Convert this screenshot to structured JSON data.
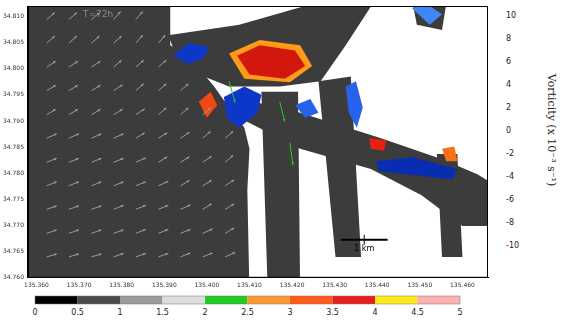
{
  "chart_data": {
    "type": "map",
    "annotation": "T=72h",
    "xlim": [
      135.358,
      135.466
    ],
    "xticks": [
      {
        "value": 135.36,
        "label": "135.360"
      },
      {
        "value": 135.37,
        "label": "135.370"
      },
      {
        "value": 135.38,
        "label": "135.380"
      },
      {
        "value": 135.39,
        "label": "135.390"
      },
      {
        "value": 135.4,
        "label": "135.400"
      },
      {
        "value": 135.41,
        "label": "135.410"
      },
      {
        "value": 135.42,
        "label": "135.420"
      },
      {
        "value": 135.43,
        "label": "135.430"
      },
      {
        "value": 135.44,
        "label": "135.440"
      },
      {
        "value": 135.45,
        "label": "135.450"
      },
      {
        "value": 135.46,
        "label": "135.460"
      }
    ],
    "ylim": [
      34.76,
      34.812
    ],
    "yticks": [
      {
        "value": 34.76,
        "label": "34.760"
      },
      {
        "value": 34.765,
        "label": "34.765"
      },
      {
        "value": 34.77,
        "label": "34.770"
      },
      {
        "value": 34.775,
        "label": "34.775"
      },
      {
        "value": 34.78,
        "label": "34.780"
      },
      {
        "value": 34.785,
        "label": "34.785"
      },
      {
        "value": 34.79,
        "label": "34.790"
      },
      {
        "value": 34.795,
        "label": "34.795"
      },
      {
        "value": 34.8,
        "label": "34.800"
      },
      {
        "value": 34.805,
        "label": "34.805"
      },
      {
        "value": 34.81,
        "label": "34.810"
      }
    ],
    "grid": false,
    "water": [
      [
        [
          135.3552,
          34.8134
        ],
        [
          135.3914,
          34.8134
        ],
        [
          135.3914,
          34.8045
        ],
        [
          135.3957,
          34.8025
        ],
        [
          135.4017,
          34.7966
        ],
        [
          135.4052,
          34.7926
        ],
        [
          135.4088,
          34.7887
        ],
        [
          135.41,
          34.7847
        ],
        [
          135.4095,
          34.7768
        ],
        [
          135.41,
          34.757
        ],
        [
          135.3552,
          34.757
        ]
      ],
      [
        [
          135.3909,
          34.8064
        ],
        [
          135.4076,
          34.8084
        ],
        [
          135.429,
          34.8134
        ],
        [
          135.4397,
          34.8134
        ],
        [
          135.4326,
          34.8045
        ],
        [
          135.4267,
          34.7976
        ],
        [
          135.4171,
          34.7966
        ],
        [
          135.4052,
          34.7966
        ],
        [
          135.3993,
          34.7985
        ],
        [
          135.3933,
          34.8015
        ]
      ],
      [
        [
          135.4128,
          34.7956
        ],
        [
          135.4214,
          34.7956
        ],
        [
          135.4219,
          34.757
        ],
        [
          135.4143,
          34.757
        ]
      ],
      [
        [
          135.4262,
          34.7976
        ],
        [
          135.4338,
          34.7985
        ],
        [
          135.4362,
          34.764
        ],
        [
          135.4302,
          34.764
        ]
      ],
      [
        [
          135.4064,
          34.7946
        ],
        [
          135.4219,
          34.7916
        ],
        [
          135.4409,
          34.7867
        ],
        [
          135.4552,
          34.7827
        ],
        [
          135.4635,
          34.7798
        ],
        [
          135.4695,
          34.7768
        ],
        [
          135.4695,
          34.7699
        ],
        [
          135.46,
          34.7699
        ],
        [
          135.4504,
          34.7758
        ],
        [
          135.4385,
          34.7808
        ],
        [
          135.4219,
          34.7847
        ],
        [
          135.4076,
          34.7906
        ]
      ],
      [
        [
          135.4481,
          34.8134
        ],
        [
          135.4564,
          34.8134
        ],
        [
          135.4552,
          34.8074
        ],
        [
          135.4493,
          34.8084
        ]
      ],
      [
        [
          135.454,
          34.7837
        ],
        [
          135.4588,
          34.7837
        ],
        [
          135.46,
          34.764
        ],
        [
          135.4552,
          34.764
        ]
      ]
    ],
    "vorticity_patches": [
      {
        "value": 3,
        "polygon": [
          [
            135.4052,
            34.8029
          ],
          [
            135.4124,
            34.8055
          ],
          [
            135.4219,
            34.8045
          ],
          [
            135.4247,
            34.8005
          ],
          [
            135.4195,
            34.7974
          ],
          [
            135.4088,
            34.7981
          ]
        ]
      },
      {
        "value": 7,
        "polygon": [
          [
            135.4071,
            34.8025
          ],
          [
            135.4124,
            34.8045
          ],
          [
            135.4207,
            34.8035
          ],
          [
            135.4231,
            34.8005
          ],
          [
            135.4183,
            34.7981
          ],
          [
            135.41,
            34.7989
          ]
        ]
      },
      {
        "value": -7,
        "polygon": [
          [
            135.3921,
            34.8025
          ],
          [
            135.3957,
            34.8049
          ],
          [
            135.4005,
            34.8041
          ],
          [
            135.3993,
            34.8021
          ],
          [
            135.3957,
            34.8009
          ]
        ]
      },
      {
        "value": -7,
        "polygon": [
          [
            135.404,
            34.7946
          ],
          [
            135.4088,
            34.7966
          ],
          [
            135.4128,
            34.795
          ],
          [
            135.4119,
            34.7916
          ],
          [
            135.4076,
            34.7887
          ],
          [
            135.4047,
            34.7906
          ]
        ]
      },
      {
        "value": 5,
        "polygon": [
          [
            135.3981,
            34.7937
          ],
          [
            135.4009,
            34.7956
          ],
          [
            135.4024,
            34.793
          ],
          [
            135.4,
            34.7906
          ]
        ]
      },
      {
        "value": -5,
        "polygon": [
          [
            135.4326,
            34.7966
          ],
          [
            135.435,
            34.7976
          ],
          [
            135.4366,
            34.7926
          ],
          [
            135.4352,
            34.7887
          ],
          [
            135.4333,
            34.7916
          ]
        ]
      },
      {
        "value": -8,
        "polygon": [
          [
            135.4397,
            34.7823
          ],
          [
            135.4481,
            34.7831
          ],
          [
            135.4588,
            34.7808
          ],
          [
            135.4576,
            34.7788
          ],
          [
            135.4469,
            34.7798
          ],
          [
            135.4404,
            34.7804
          ]
        ]
      },
      {
        "value": 6,
        "polygon": [
          [
            135.4381,
            34.7867
          ],
          [
            135.4421,
            34.7863
          ],
          [
            135.4416,
            34.7843
          ],
          [
            135.4385,
            34.7847
          ]
        ]
      },
      {
        "value": -4,
        "polygon": [
          [
            135.4481,
            34.8116
          ],
          [
            135.4516,
            34.8124
          ],
          [
            135.4552,
            34.8104
          ],
          [
            135.4523,
            34.8084
          ]
        ]
      },
      {
        "value": 4,
        "polygon": [
          [
            135.4552,
            34.7847
          ],
          [
            135.4581,
            34.7851
          ],
          [
            135.4588,
            34.7823
          ],
          [
            135.4562,
            34.7823
          ]
        ]
      },
      {
        "value": -5,
        "polygon": [
          [
            135.4207,
            34.793
          ],
          [
            135.4243,
            34.7942
          ],
          [
            135.4262,
            34.7916
          ],
          [
            135.4231,
            34.7906
          ]
        ]
      }
    ],
    "vectors": [
      [
        135.3624,
        34.8094,
        0.8,
        0.7
      ],
      [
        135.3676,
        34.8094,
        0.8,
        0.7
      ],
      [
        135.3729,
        34.8094,
        0.8,
        0.7
      ],
      [
        135.3781,
        34.8094,
        0.7,
        0.8
      ],
      [
        135.3833,
        34.8094,
        0.7,
        0.8
      ],
      [
        135.3624,
        34.8049,
        0.8,
        0.7
      ],
      [
        135.3676,
        34.8049,
        0.8,
        0.7
      ],
      [
        135.3729,
        34.8049,
        0.8,
        0.7
      ],
      [
        135.3781,
        34.8049,
        0.8,
        0.7
      ],
      [
        135.3833,
        34.8049,
        0.7,
        0.8
      ],
      [
        135.3886,
        34.8049,
        0.7,
        0.8
      ],
      [
        135.3624,
        34.8003,
        0.9,
        0.6
      ],
      [
        135.3676,
        34.8003,
        0.9,
        0.6
      ],
      [
        135.3729,
        34.8003,
        0.9,
        0.6
      ],
      [
        135.3781,
        34.8003,
        0.8,
        0.7
      ],
      [
        135.3833,
        34.8003,
        0.8,
        0.7
      ],
      [
        135.3886,
        34.8003,
        0.8,
        0.7
      ],
      [
        135.3624,
        34.7958,
        0.9,
        0.55
      ],
      [
        135.3676,
        34.7958,
        0.9,
        0.55
      ],
      [
        135.3729,
        34.7958,
        0.9,
        0.55
      ],
      [
        135.3781,
        34.7958,
        0.9,
        0.6
      ],
      [
        135.3833,
        34.7958,
        0.8,
        0.7
      ],
      [
        135.3886,
        34.7958,
        0.8,
        0.7
      ],
      [
        135.3938,
        34.7958,
        0.8,
        0.7
      ],
      [
        135.3624,
        34.7912,
        0.9,
        0.55
      ],
      [
        135.3676,
        34.7912,
        0.9,
        0.55
      ],
      [
        135.3729,
        34.7912,
        0.9,
        0.55
      ],
      [
        135.3781,
        34.7912,
        0.9,
        0.55
      ],
      [
        135.3833,
        34.7912,
        0.9,
        0.6
      ],
      [
        135.3886,
        34.7912,
        0.8,
        0.7
      ],
      [
        135.3938,
        34.7912,
        0.8,
        0.7
      ],
      [
        135.399,
        34.7912,
        0.8,
        0.7
      ],
      [
        135.3624,
        34.7867,
        1.0,
        0.45
      ],
      [
        135.3676,
        34.7867,
        1.0,
        0.45
      ],
      [
        135.3729,
        34.7867,
        1.0,
        0.45
      ],
      [
        135.3781,
        34.7867,
        1.0,
        0.45
      ],
      [
        135.3833,
        34.7867,
        0.9,
        0.55
      ],
      [
        135.3886,
        34.7867,
        0.9,
        0.55
      ],
      [
        135.3938,
        34.7867,
        0.9,
        0.6
      ],
      [
        135.399,
        34.7867,
        0.8,
        0.7
      ],
      [
        135.4043,
        34.7867,
        0.8,
        0.7
      ],
      [
        135.3624,
        34.7821,
        1.0,
        0.4
      ],
      [
        135.3676,
        34.7821,
        1.0,
        0.4
      ],
      [
        135.3729,
        34.7821,
        1.0,
        0.4
      ],
      [
        135.3781,
        34.7821,
        1.0,
        0.4
      ],
      [
        135.3833,
        34.7821,
        1.0,
        0.45
      ],
      [
        135.3886,
        34.7821,
        0.9,
        0.55
      ],
      [
        135.3938,
        34.7821,
        0.9,
        0.55
      ],
      [
        135.399,
        34.7821,
        0.9,
        0.6
      ],
      [
        135.4043,
        34.7821,
        0.8,
        0.7
      ],
      [
        135.3624,
        34.7776,
        1.0,
        0.4
      ],
      [
        135.3676,
        34.7776,
        1.0,
        0.4
      ],
      [
        135.3729,
        34.7776,
        1.0,
        0.4
      ],
      [
        135.3781,
        34.7776,
        1.0,
        0.4
      ],
      [
        135.3833,
        34.7776,
        1.0,
        0.4
      ],
      [
        135.3886,
        34.7776,
        1.0,
        0.45
      ],
      [
        135.3938,
        34.7776,
        0.9,
        0.55
      ],
      [
        135.399,
        34.7776,
        0.9,
        0.55
      ],
      [
        135.4043,
        34.7776,
        0.9,
        0.6
      ],
      [
        135.3624,
        34.7731,
        1.0,
        0.35
      ],
      [
        135.3676,
        34.7731,
        1.0,
        0.35
      ],
      [
        135.3729,
        34.7731,
        1.0,
        0.35
      ],
      [
        135.3781,
        34.7731,
        1.0,
        0.4
      ],
      [
        135.3833,
        34.7731,
        1.0,
        0.4
      ],
      [
        135.3886,
        34.7731,
        1.0,
        0.4
      ],
      [
        135.3938,
        34.7731,
        1.0,
        0.45
      ],
      [
        135.399,
        34.7731,
        0.9,
        0.55
      ],
      [
        135.4043,
        34.7731,
        0.9,
        0.55
      ],
      [
        135.3624,
        34.7685,
        1.0,
        0.35
      ],
      [
        135.3676,
        34.7685,
        1.0,
        0.35
      ],
      [
        135.3729,
        34.7685,
        1.0,
        0.35
      ],
      [
        135.3781,
        34.7685,
        1.0,
        0.35
      ],
      [
        135.3833,
        34.7685,
        1.0,
        0.4
      ],
      [
        135.3886,
        34.7685,
        1.0,
        0.4
      ],
      [
        135.3938,
        34.7685,
        1.0,
        0.4
      ],
      [
        135.399,
        34.7685,
        1.0,
        0.45
      ],
      [
        135.4043,
        34.7685,
        0.9,
        0.55
      ],
      [
        135.3624,
        34.764,
        1.0,
        0.3
      ],
      [
        135.3676,
        34.764,
        1.0,
        0.3
      ],
      [
        135.3729,
        34.764,
        1.0,
        0.3
      ],
      [
        135.3781,
        34.764,
        1.0,
        0.35
      ],
      [
        135.3833,
        34.764,
        1.0,
        0.35
      ],
      [
        135.3886,
        34.764,
        1.0,
        0.35
      ],
      [
        135.3938,
        34.764,
        1.0,
        0.4
      ],
      [
        135.399,
        34.764,
        1.0,
        0.4
      ],
      [
        135.4043,
        34.764,
        1.0,
        0.45
      ],
      [
        135.4052,
        34.7976,
        0.6,
        -2.1
      ],
      [
        135.4171,
        34.7937,
        0.5,
        -2.0
      ],
      [
        135.4195,
        34.7858,
        0.3,
        -2.2
      ]
    ],
    "speed_colorbar": {
      "ticks": [
        0,
        0.5,
        1,
        1.5,
        2,
        2.5,
        3,
        3.5,
        4,
        4.5,
        5
      ],
      "colors": [
        "#000000",
        "#4a4a4a",
        "#9a9a9a",
        "#dcdcdc",
        "#22cc22",
        "#ff9a30",
        "#ff5a1a",
        "#e81e1e",
        "#ffe81a",
        "#ffb0b0"
      ]
    },
    "vorticity_colorbar": {
      "label": "Vorticity (x 10⁻³ s⁻¹)",
      "range": [
        -10,
        10
      ],
      "ticks": [
        10,
        8,
        6,
        4,
        2,
        0,
        -2,
        -4,
        -6,
        -8,
        -10
      ]
    },
    "scale_bar": {
      "label": "1 km",
      "length": 0.011
    }
  }
}
